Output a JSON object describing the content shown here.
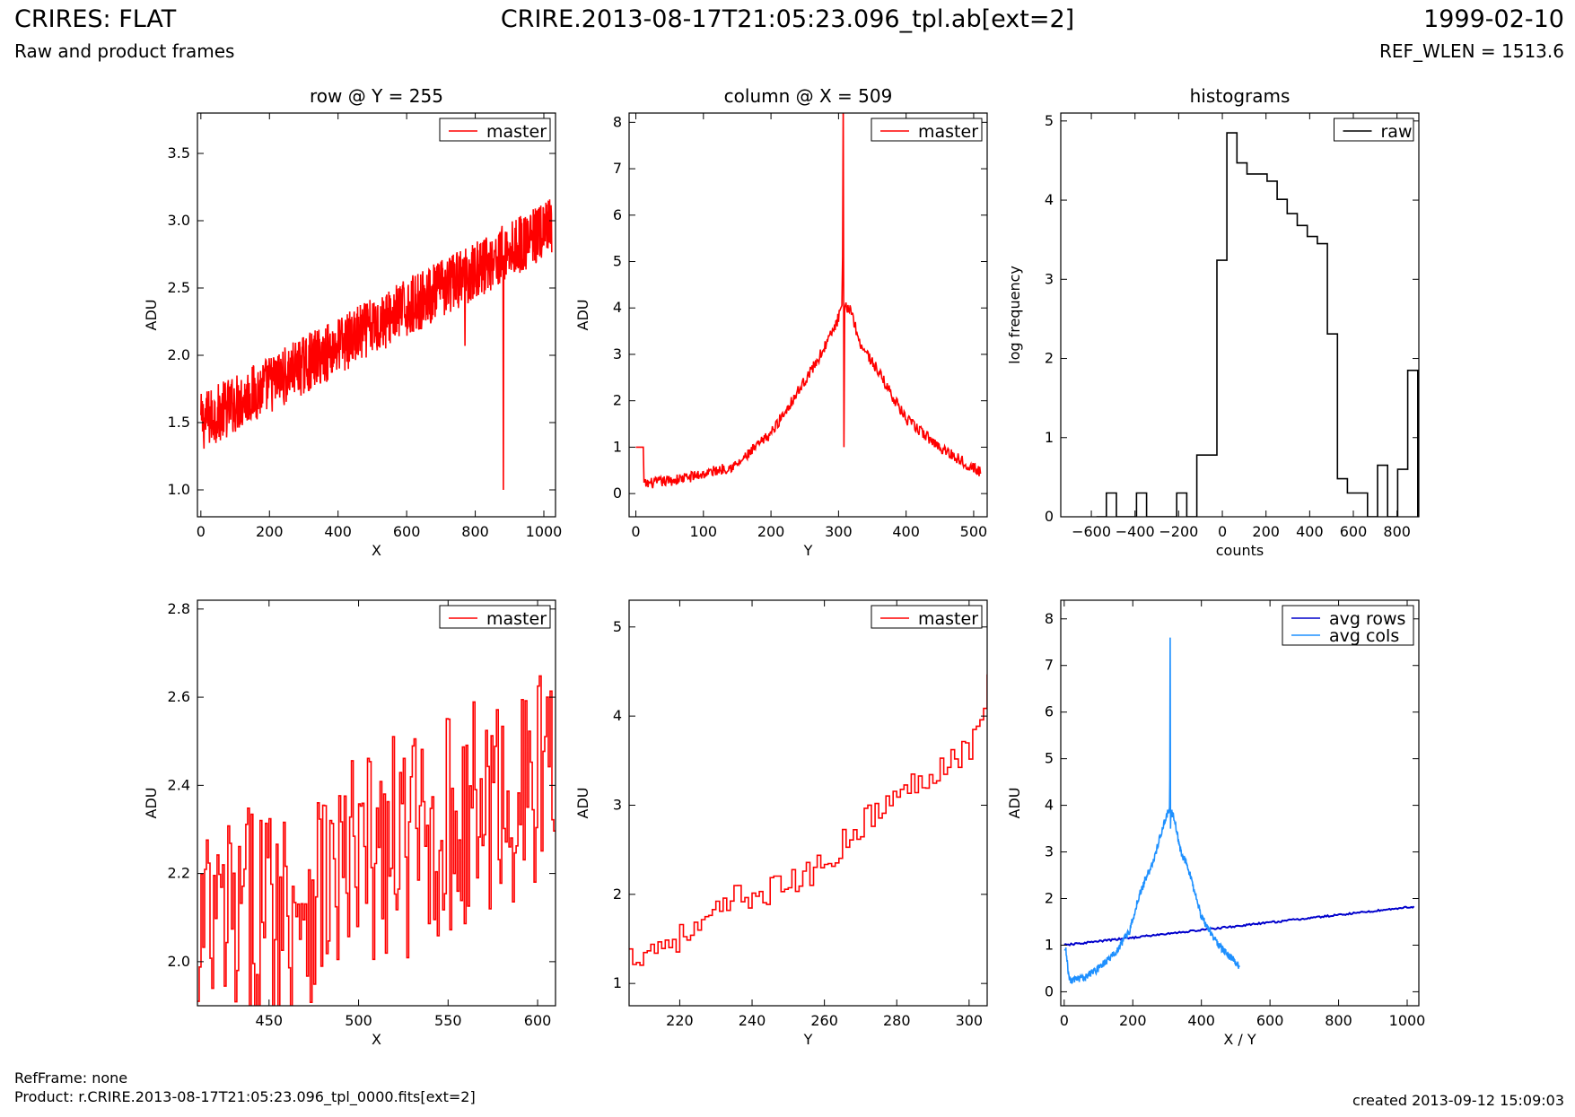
{
  "header": {
    "title_left": "CRIRES: FLAT",
    "title_center": "CRIRE.2013-08-17T21:05:23.096_tpl.ab[ext=2]",
    "title_right": "1999-02-10",
    "subtitle_left": "Raw and product frames",
    "subtitle_right": "REF_WLEN = 1513.6"
  },
  "footer": {
    "ref_frame": "RefFrame: none",
    "product": "Product: r.CRIRE.2013-08-17T21:05:23.096_tpl_0000.fits[ext=2]",
    "created": "created 2013-09-12 15:09:03"
  },
  "colors": {
    "master": "#ff0000",
    "raw": "#000000",
    "avg_rows": "#0000cc",
    "avg_cols": "#1e90ff"
  },
  "chart_data": [
    {
      "id": "row",
      "type": "line",
      "title": "row @ Y = 255",
      "xlabel": "X",
      "ylabel": "ADU",
      "xlim": [
        -10,
        1034
      ],
      "ylim": [
        0.8,
        3.8
      ],
      "xticks": [
        0,
        200,
        400,
        600,
        800,
        1000
      ],
      "yticks": [
        1.0,
        1.5,
        2.0,
        2.5,
        3.0,
        3.5
      ],
      "legend": "top-right",
      "series": [
        {
          "name": "master",
          "color": "#ff0000",
          "style": "noisy-ramp",
          "x_range": [
            0,
            1023
          ],
          "start": 1.5,
          "end": 2.95,
          "noise": 0.22,
          "spikes": [
            {
              "x": 770,
              "y": 2.07
            },
            {
              "x": 882,
              "y": 1.0
            }
          ]
        }
      ]
    },
    {
      "id": "column",
      "type": "line",
      "title": "column @ X = 509",
      "xlabel": "Y",
      "ylabel": "ADU",
      "xlim": [
        -10,
        520
      ],
      "ylim": [
        -0.5,
        8.2
      ],
      "xticks": [
        0,
        100,
        200,
        300,
        400,
        500
      ],
      "yticks": [
        0,
        1,
        2,
        3,
        4,
        5,
        6,
        7,
        8
      ],
      "legend": "top-right",
      "series": [
        {
          "name": "master",
          "color": "#ff0000",
          "style": "peak",
          "x_range": [
            0,
            511
          ],
          "flat_until": 12,
          "flat_value": 1.0,
          "points": [
            [
              12,
              0.2
            ],
            [
              60,
              0.3
            ],
            [
              100,
              0.42
            ],
            [
              150,
              0.62
            ],
            [
              200,
              1.3
            ],
            [
              240,
              2.2
            ],
            [
              270,
              2.9
            ],
            [
              295,
              3.6
            ],
            [
              305,
              4.0
            ],
            [
              318,
              4.0
            ],
            [
              330,
              3.3
            ],
            [
              360,
              2.6
            ],
            [
              400,
              1.6
            ],
            [
              450,
              1.0
            ],
            [
              511,
              0.45
            ]
          ],
          "spike_x": 307,
          "spike_top": 8.5,
          "spike_bottom": 1.0,
          "noise": 0.12
        }
      ]
    },
    {
      "id": "histograms",
      "type": "bar",
      "title": "histograms",
      "xlabel": "counts",
      "ylabel": "log frequency",
      "xlim": [
        -740,
        900
      ],
      "ylim": [
        0,
        5.1
      ],
      "xticks": [
        -600,
        -400,
        -200,
        0,
        200,
        400,
        600,
        800
      ],
      "yticks": [
        0,
        1,
        2,
        3,
        4,
        5
      ],
      "legend": "top-right",
      "series": [
        {
          "name": "raw",
          "color": "#000000",
          "bin_width": 46,
          "bin_starts": [
            -577,
            -531,
            -485,
            -439,
            -393,
            -347,
            -301,
            -255,
            -209,
            -163,
            -117,
            -71,
            -25,
            21,
            67,
            113,
            159,
            205,
            251,
            297,
            343,
            389,
            435,
            481,
            527,
            573,
            619,
            665,
            711,
            757,
            803,
            849
          ],
          "values": [
            0,
            0.3,
            0,
            0,
            0.3,
            0,
            0,
            0,
            0.3,
            0,
            0.78,
            0.78,
            3.24,
            4.85,
            4.47,
            4.33,
            4.33,
            4.24,
            4.01,
            3.83,
            3.68,
            3.54,
            3.45,
            2.31,
            0.48,
            0.3,
            0.3,
            0,
            0.65,
            0,
            0.6,
            1.85
          ]
        }
      ]
    },
    {
      "id": "row-zoom",
      "type": "line",
      "title": "",
      "xlabel": "X",
      "ylabel": "ADU",
      "xlim": [
        410,
        610
      ],
      "ylim": [
        1.9,
        2.82
      ],
      "xticks": [
        450,
        500,
        550,
        600
      ],
      "yticks": [
        2.0,
        2.2,
        2.4,
        2.6,
        2.8
      ],
      "legend": "top-right",
      "series": [
        {
          "name": "master",
          "color": "#ff0000",
          "style": "noisy-ramp",
          "x_range": [
            410,
            609
          ],
          "start": 2.05,
          "end": 2.42,
          "noise": 0.26,
          "spikes": [
            {
              "x": 410,
              "y": 1.91
            },
            {
              "x": 432,
              "y": 1.98
            },
            {
              "x": 605,
              "y": 2.6
            }
          ]
        }
      ]
    },
    {
      "id": "column-zoom",
      "type": "line",
      "title": "",
      "xlabel": "Y",
      "ylabel": "ADU",
      "xlim": [
        206,
        305
      ],
      "ylim": [
        0.75,
        5.3
      ],
      "xticks": [
        220,
        240,
        260,
        280,
        300
      ],
      "yticks": [
        1,
        2,
        3,
        4,
        5
      ],
      "legend": "top-right",
      "series": [
        {
          "name": "master",
          "color": "#ff0000",
          "style": "step-ramp",
          "points": [
            [
              206,
              1.3
            ],
            [
              215,
              1.45
            ],
            [
              225,
              1.6
            ],
            [
              235,
              1.95
            ],
            [
              245,
              2.05
            ],
            [
              255,
              2.2
            ],
            [
              262,
              2.45
            ],
            [
              270,
              2.8
            ],
            [
              280,
              3.1
            ],
            [
              290,
              3.4
            ],
            [
              300,
              3.65
            ],
            [
              303,
              4.0
            ],
            [
              305,
              4.35
            ]
          ],
          "noise": 0.16
        }
      ]
    },
    {
      "id": "averages",
      "type": "line",
      "title": "",
      "xlabel": "X / Y",
      "ylabel": "ADU",
      "xlim": [
        -10,
        1034
      ],
      "ylim": [
        -0.3,
        8.4
      ],
      "xticks": [
        0,
        200,
        400,
        600,
        800,
        1000
      ],
      "yticks": [
        0,
        1,
        2,
        3,
        4,
        5,
        6,
        7,
        8
      ],
      "legend": "top-right",
      "series": [
        {
          "name": "avg rows",
          "color": "#0000cc",
          "style": "smooth-ramp",
          "x_range": [
            0,
            1023
          ],
          "start": 1.0,
          "end": 1.83,
          "noise": 0.02
        },
        {
          "name": "avg cols",
          "color": "#1e90ff",
          "style": "peak",
          "x_range": [
            0,
            511
          ],
          "flat_until": 5,
          "flat_value": 0.9,
          "points": [
            [
              5,
              0.9
            ],
            [
              15,
              0.25
            ],
            [
              60,
              0.3
            ],
            [
              100,
              0.5
            ],
            [
              150,
              0.85
            ],
            [
              190,
              1.3
            ],
            [
              220,
              2.1
            ],
            [
              260,
              2.8
            ],
            [
              290,
              3.6
            ],
            [
              305,
              3.9
            ],
            [
              318,
              3.8
            ],
            [
              340,
              3.0
            ],
            [
              360,
              2.7
            ],
            [
              400,
              1.6
            ],
            [
              450,
              1.0
            ],
            [
              511,
              0.55
            ]
          ],
          "spike_x": 309,
          "spike_top": 7.6,
          "spike_bottom": 3.5,
          "noise": 0.08
        }
      ]
    }
  ]
}
